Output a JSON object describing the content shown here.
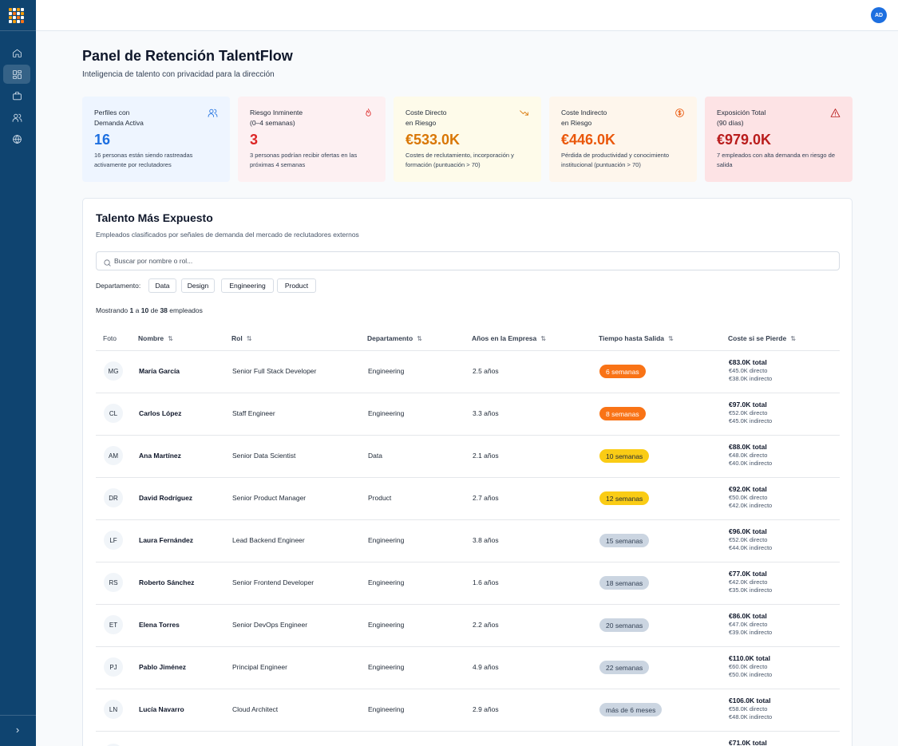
{
  "header": {
    "user_initials": "AD"
  },
  "page": {
    "title": "Panel de Retención TalentFlow",
    "subtitle": "Inteligencia de talento con privacidad para la dirección"
  },
  "kpis": [
    {
      "label1": "Perfiles con",
      "label2": "Demanda Activa",
      "value": "16",
      "desc": "16 personas están siendo rastreadas activamente por reclutadores",
      "bg": "#eef5ff",
      "color": "#1d6fe0",
      "icon": "users-icon"
    },
    {
      "label1": "Riesgo Inminente",
      "label2": "(0–4 semanas)",
      "value": "3",
      "desc": "3 personas podrían recibir ofertas en las próximas 4 semanas",
      "bg": "#fdf0f2",
      "color": "#dc2626",
      "icon": "flame-icon"
    },
    {
      "label1": "Coste Directo",
      "label2": "en Riesgo",
      "value": "€533.0K",
      "desc": "Costes de reclutamiento, incorporación y formación (puntuación > 70)",
      "bg": "#fefbea",
      "color": "#d97706",
      "icon": "trending-down-icon"
    },
    {
      "label1": "Coste Indirecto",
      "label2": "en Riesgo",
      "value": "€446.0K",
      "desc": "Pérdida de productividad y conocimiento institucional (puntuación > 70)",
      "bg": "#fef6ec",
      "color": "#ea580c",
      "icon": "dollar-circle-icon"
    },
    {
      "label1": "Exposición Total",
      "label2": "(90 días)",
      "value": "€979.0K",
      "desc": "7 empleados con alta demanda en riesgo de salida",
      "bg": "#fde3e5",
      "color": "#b91c1c",
      "icon": "alert-triangle-icon"
    }
  ],
  "table": {
    "title": "Talento Más Expuesto",
    "subtitle": "Empleados clasificados por señales de demanda del mercado de reclutadores externos",
    "search_placeholder": "Buscar por nombre o rol...",
    "dept_label": "Departamento:",
    "departments": [
      "Data",
      "Design",
      "Engineering",
      "Product"
    ],
    "count_prefix": "Mostrando",
    "count_from": "1",
    "count_mid": "a",
    "count_to": "10",
    "count_of": "de",
    "count_total": "38",
    "count_suffix": "empleados",
    "columns": [
      "Foto",
      "Nombre",
      "Rol",
      "Departamento",
      "Años en la Empresa",
      "Tiempo hasta Salida",
      "Coste si se Pierde"
    ],
    "rows": [
      {
        "initials": "MG",
        "name": "María García",
        "role": "Senior Full Stack Developer",
        "dept": "Engineering",
        "years": "2.5 años",
        "exit": "6 semanas",
        "level": "high",
        "total": "€83.0K total",
        "direct": "€45.0K directo",
        "indirect": "€38.0K indirecto"
      },
      {
        "initials": "CL",
        "name": "Carlos López",
        "role": "Staff Engineer",
        "dept": "Engineering",
        "years": "3.3 años",
        "exit": "8 semanas",
        "level": "high",
        "total": "€97.0K total",
        "direct": "€52.0K directo",
        "indirect": "€45.0K indirecto"
      },
      {
        "initials": "AM",
        "name": "Ana Martínez",
        "role": "Senior Data Scientist",
        "dept": "Data",
        "years": "2.1 años",
        "exit": "10 semanas",
        "level": "medium",
        "total": "€88.0K total",
        "direct": "€48.0K directo",
        "indirect": "€40.0K indirecto"
      },
      {
        "initials": "DR",
        "name": "David Rodríguez",
        "role": "Senior Product Manager",
        "dept": "Product",
        "years": "2.7 años",
        "exit": "12 semanas",
        "level": "medium",
        "total": "€92.0K total",
        "direct": "€50.0K directo",
        "indirect": "€42.0K indirecto"
      },
      {
        "initials": "LF",
        "name": "Laura Fernández",
        "role": "Lead Backend Engineer",
        "dept": "Engineering",
        "years": "3.8 años",
        "exit": "15 semanas",
        "level": "low",
        "total": "€96.0K total",
        "direct": "€52.0K directo",
        "indirect": "€44.0K indirecto"
      },
      {
        "initials": "RS",
        "name": "Roberto Sánchez",
        "role": "Senior Frontend Developer",
        "dept": "Engineering",
        "years": "1.6 años",
        "exit": "18 semanas",
        "level": "low",
        "total": "€77.0K total",
        "direct": "€42.0K directo",
        "indirect": "€35.0K indirecto"
      },
      {
        "initials": "ET",
        "name": "Elena Torres",
        "role": "Senior DevOps Engineer",
        "dept": "Engineering",
        "years": "2.2 años",
        "exit": "20 semanas",
        "level": "low",
        "total": "€86.0K total",
        "direct": "€47.0K directo",
        "indirect": "€39.0K indirecto"
      },
      {
        "initials": "PJ",
        "name": "Pablo Jiménez",
        "role": "Principal Engineer",
        "dept": "Engineering",
        "years": "4.9 años",
        "exit": "22 semanas",
        "level": "low",
        "total": "€110.0K total",
        "direct": "€60.0K directo",
        "indirect": "€50.0K indirecto"
      },
      {
        "initials": "LN",
        "name": "Lucía Navarro",
        "role": "Cloud Architect",
        "dept": "Engineering",
        "years": "2.9 años",
        "exit": "más de 6 meses",
        "level": "low",
        "total": "€106.0K total",
        "direct": "€58.0K directo",
        "indirect": "€48.0K indirecto"
      },
      {
        "initials": "",
        "name": "",
        "role": "",
        "dept": "",
        "years": "",
        "exit": "",
        "level": "low",
        "total": "€71.0K total",
        "direct": "",
        "indirect": ""
      }
    ]
  },
  "badge_colors": {
    "high": {
      "bg": "#f97316",
      "fg": "#ffffff"
    },
    "medium": {
      "bg": "#facc15",
      "fg": "#1f2937"
    },
    "low": {
      "bg": "#cbd5e1",
      "fg": "#334155"
    }
  }
}
